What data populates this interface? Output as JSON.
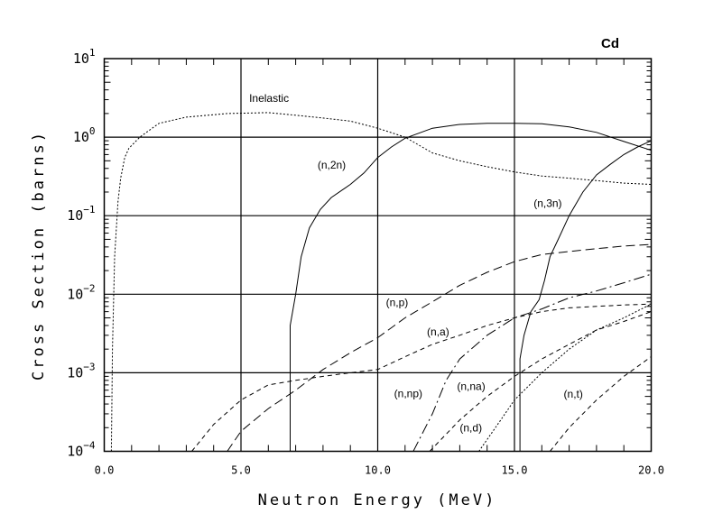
{
  "chart_data": {
    "type": "line",
    "title": "Cd",
    "xlabel": "Neutron Energy (MeV)",
    "ylabel": "Cross Section (barns)",
    "xlim": [
      0,
      20
    ],
    "ylim": [
      0.0001,
      10
    ],
    "yscale": "log",
    "grid": true,
    "x_ticks": [
      0,
      5,
      10,
      15,
      20
    ],
    "x_tick_labels": [
      "0.0",
      "5.0",
      "10.0",
      "15.0",
      "20.0"
    ],
    "y_ticks": [
      {
        "exp": 1
      },
      {
        "exp": 0
      },
      {
        "exp": -1
      },
      {
        "exp": -2
      },
      {
        "exp": -3
      },
      {
        "exp": -4
      }
    ],
    "y_tick_base": "10",
    "series": [
      {
        "name": "Inelastic",
        "style": "dotted",
        "label_at": [
          5.3,
          2.8
        ],
        "points": [
          [
            0.26,
            0.0001
          ],
          [
            0.3,
            0.002
          ],
          [
            0.38,
            0.03
          ],
          [
            0.5,
            0.15
          ],
          [
            0.6,
            0.3
          ],
          [
            0.75,
            0.55
          ],
          [
            0.9,
            0.72
          ],
          [
            1.3,
            1.0
          ],
          [
            2,
            1.5
          ],
          [
            3,
            1.8
          ],
          [
            4.5,
            2.0
          ],
          [
            6,
            2.05
          ],
          [
            7,
            1.9
          ],
          [
            8,
            1.75
          ],
          [
            9,
            1.6
          ],
          [
            10,
            1.3
          ],
          [
            11,
            1.0
          ],
          [
            12,
            0.63
          ],
          [
            13,
            0.5
          ],
          [
            14,
            0.42
          ],
          [
            15,
            0.36
          ],
          [
            16,
            0.32
          ],
          [
            17,
            0.3
          ],
          [
            18,
            0.28
          ],
          [
            19,
            0.26
          ],
          [
            20,
            0.25
          ]
        ]
      },
      {
        "name": "(n,2n)",
        "style": "solid",
        "label_at": [
          7.8,
          0.4
        ],
        "points": [
          [
            6.8,
            0.0001
          ],
          [
            6.8,
            0.004
          ],
          [
            7.0,
            0.01
          ],
          [
            7.2,
            0.03
          ],
          [
            7.5,
            0.07
          ],
          [
            7.9,
            0.12
          ],
          [
            8.3,
            0.17
          ],
          [
            9,
            0.25
          ],
          [
            9.5,
            0.35
          ],
          [
            10,
            0.55
          ],
          [
            10.5,
            0.75
          ],
          [
            11,
            0.97
          ],
          [
            12,
            1.3
          ],
          [
            13,
            1.45
          ],
          [
            14,
            1.5
          ],
          [
            15,
            1.5
          ],
          [
            16,
            1.48
          ],
          [
            17,
            1.35
          ],
          [
            18,
            1.15
          ],
          [
            19,
            0.88
          ],
          [
            20,
            0.68
          ]
        ]
      },
      {
        "name": "(n,3n)",
        "style": "solid",
        "label_at": [
          15.7,
          0.13
        ],
        "points": [
          [
            15.2,
            0.0001
          ],
          [
            15.2,
            0.0015
          ],
          [
            15.35,
            0.003
          ],
          [
            15.6,
            0.006
          ],
          [
            15.9,
            0.0085
          ],
          [
            16.1,
            0.015
          ],
          [
            16.3,
            0.03
          ],
          [
            16.6,
            0.05
          ],
          [
            17,
            0.1
          ],
          [
            17.5,
            0.2
          ],
          [
            18,
            0.33
          ],
          [
            18.5,
            0.45
          ],
          [
            19,
            0.6
          ],
          [
            19.5,
            0.75
          ],
          [
            20,
            0.9
          ]
        ]
      },
      {
        "name": "(n,p)",
        "style": "longdash",
        "label_at": [
          10.3,
          0.0071
        ],
        "points": [
          [
            4.5,
            0.0001
          ],
          [
            5,
            0.00018
          ],
          [
            6,
            0.00035
          ],
          [
            7,
            0.0006
          ],
          [
            8,
            0.0011
          ],
          [
            9,
            0.0018
          ],
          [
            10,
            0.0028
          ],
          [
            11,
            0.005
          ],
          [
            12,
            0.008
          ],
          [
            13,
            0.013
          ],
          [
            14,
            0.019
          ],
          [
            15,
            0.026
          ],
          [
            16,
            0.032
          ],
          [
            17,
            0.035
          ],
          [
            18,
            0.038
          ],
          [
            19,
            0.041
          ],
          [
            20,
            0.043
          ]
        ]
      },
      {
        "name": "(n,a)",
        "style": "dash",
        "label_at": [
          11.8,
          0.003
        ],
        "points": [
          [
            3.2,
            0.0001
          ],
          [
            4,
            0.00022
          ],
          [
            5,
            0.00045
          ],
          [
            6,
            0.0007
          ],
          [
            7,
            0.0008
          ],
          [
            8,
            0.0009
          ],
          [
            9,
            0.001
          ],
          [
            10,
            0.0011
          ],
          [
            11,
            0.0016
          ],
          [
            12,
            0.0023
          ],
          [
            13,
            0.003
          ],
          [
            14,
            0.004
          ],
          [
            15,
            0.005
          ],
          [
            16,
            0.006
          ],
          [
            17,
            0.0067
          ],
          [
            18,
            0.007
          ],
          [
            19,
            0.0073
          ],
          [
            20,
            0.0075
          ]
        ]
      },
      {
        "name": "(n,np)",
        "style": "dashdot",
        "label_at": [
          10.6,
          0.00049
        ],
        "points": [
          [
            11.3,
            0.0001
          ],
          [
            12,
            0.0003
          ],
          [
            12.5,
            0.0008
          ],
          [
            13,
            0.0015
          ],
          [
            14,
            0.003
          ],
          [
            15,
            0.005
          ],
          [
            16,
            0.0065
          ],
          [
            17,
            0.009
          ],
          [
            18,
            0.011
          ],
          [
            19,
            0.014
          ],
          [
            20,
            0.018
          ]
        ]
      },
      {
        "name": "(n,na)",
        "style": "dash",
        "label_at": [
          12.9,
          0.0006
        ],
        "points": [
          [
            11.9,
            0.0001
          ],
          [
            13,
            0.00025
          ],
          [
            14,
            0.0005
          ],
          [
            15,
            0.0009
          ],
          [
            16,
            0.0015
          ],
          [
            17,
            0.0023
          ],
          [
            18,
            0.0035
          ],
          [
            19,
            0.0045
          ],
          [
            20,
            0.006
          ]
        ]
      },
      {
        "name": "(n,d)",
        "style": "dotted",
        "label_at": [
          13.0,
          0.00018
        ],
        "points": [
          [
            13.7,
            0.0001
          ],
          [
            14.5,
            0.00025
          ],
          [
            15,
            0.00045
          ],
          [
            16,
            0.001
          ],
          [
            17,
            0.002
          ],
          [
            18,
            0.0035
          ],
          [
            19,
            0.005
          ],
          [
            20,
            0.0075
          ]
        ]
      },
      {
        "name": "(n,t)",
        "style": "dash",
        "label_at": [
          16.8,
          0.00048
        ],
        "points": [
          [
            16.3,
            0.0001
          ],
          [
            17,
            0.0002
          ],
          [
            18,
            0.00045
          ],
          [
            19,
            0.0009
          ],
          [
            20,
            0.0016
          ]
        ]
      }
    ]
  }
}
